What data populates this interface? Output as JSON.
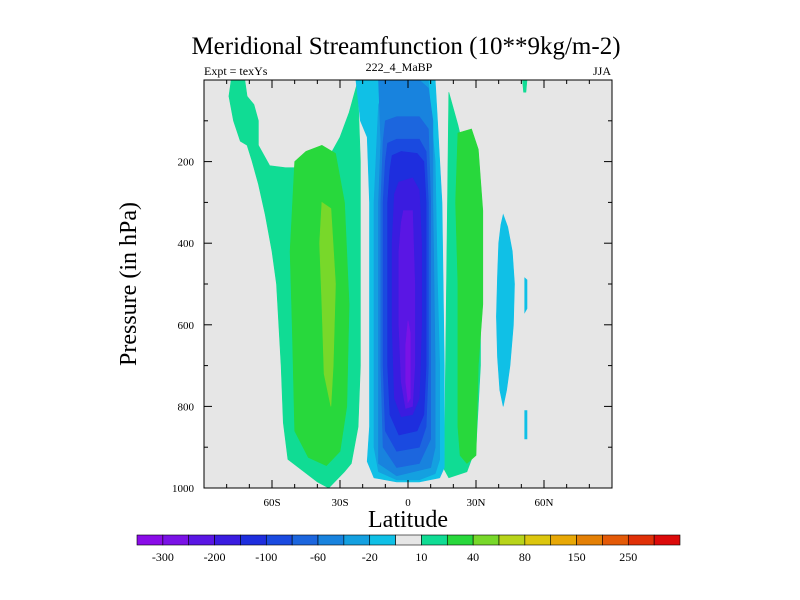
{
  "chart_data": {
    "type": "heatmap",
    "title": "Meridional Streamfunction (10**9kg/m-2)",
    "left_string": "Expt = texYs",
    "center_string": "222_4_MaBP",
    "right_string": "JJA",
    "xlabel": "Latitude",
    "ylabel": "Pressure (in hPa)",
    "xlim": [
      -90,
      90
    ],
    "ylim": [
      1000,
      0
    ],
    "x_ticks": [
      {
        "value": -60,
        "label": "60S"
      },
      {
        "value": -30,
        "label": "30S"
      },
      {
        "value": 0,
        "label": "0"
      },
      {
        "value": 30,
        "label": "30N"
      },
      {
        "value": 60,
        "label": "60N"
      }
    ],
    "y_ticks": [
      {
        "value": 200,
        "label": "200"
      },
      {
        "value": 400,
        "label": "400"
      },
      {
        "value": 600,
        "label": "600"
      },
      {
        "value": 800,
        "label": "800"
      },
      {
        "value": 1000,
        "label": "1000"
      }
    ],
    "background_color": "#e6e6e6",
    "colorbar": {
      "colors": [
        "#8a0ce8",
        "#7a12e6",
        "#5a16e4",
        "#3a1ce0",
        "#1e2ede",
        "#1a4ae0",
        "#1c66de",
        "#1883de",
        "#14a0e0",
        "#10c0e6",
        "#e6e6e6",
        "#10dc94",
        "#28d83c",
        "#78d82a",
        "#b8d41a",
        "#dcc60e",
        "#e8a806",
        "#e48006",
        "#e45a08",
        "#e03008",
        "#dc0a0a"
      ],
      "labels": [
        {
          "after_box": 0,
          "text": "-300"
        },
        {
          "after_box": 2,
          "text": "-200"
        },
        {
          "after_box": 4,
          "text": "-100"
        },
        {
          "after_box": 6,
          "text": "-60"
        },
        {
          "after_box": 8,
          "text": "-20"
        },
        {
          "after_box": 10,
          "text": "10"
        },
        {
          "after_box": 12,
          "text": "40"
        },
        {
          "after_box": 14,
          "text": "80"
        },
        {
          "after_box": 16,
          "text": "150"
        },
        {
          "after_box": 18,
          "text": "250"
        }
      ]
    },
    "contour_regions": [
      {
        "name": "nh-small-blue-cell",
        "level": -20,
        "color": "#10c0e6",
        "points": [
          [
            42,
            330
          ],
          [
            44,
            360
          ],
          [
            46,
            420
          ],
          [
            47,
            500
          ],
          [
            46.5,
            600
          ],
          [
            45,
            700
          ],
          [
            43.5,
            760
          ],
          [
            42,
            800
          ],
          [
            40.5,
            760
          ],
          [
            39.5,
            680
          ],
          [
            39,
            580
          ],
          [
            39.5,
            480
          ],
          [
            40,
            400
          ],
          [
            41,
            355
          ]
        ]
      },
      {
        "name": "nh-right-blue-fragment-1",
        "level": -20,
        "color": "#10c0e6",
        "points": [
          [
            51.5,
            485
          ],
          [
            52.5,
            490
          ],
          [
            52.5,
            560
          ],
          [
            51.5,
            570
          ]
        ]
      },
      {
        "name": "nh-right-blue-fragment-2",
        "level": -20,
        "color": "#10c0e6",
        "points": [
          [
            51.5,
            810
          ],
          [
            52.5,
            810
          ],
          [
            52.5,
            880
          ],
          [
            51.5,
            880
          ]
        ]
      },
      {
        "name": "nh-top-teal-sliver",
        "level": 10,
        "color": "#10dc94",
        "points": [
          [
            50.5,
            0
          ],
          [
            52.5,
            0
          ],
          [
            52,
            30
          ],
          [
            51,
            30
          ]
        ]
      },
      {
        "name": "sh-teal-cell",
        "level": 10,
        "color": "#10dc94",
        "points": [
          [
            -78,
            0
          ],
          [
            -72,
            0
          ],
          [
            -71,
            40
          ],
          [
            -68,
            60
          ],
          [
            -66,
            100
          ],
          [
            -66,
            160
          ],
          [
            -64,
            180
          ],
          [
            -61,
            210
          ],
          [
            -54,
            215
          ],
          [
            -44,
            215
          ],
          [
            -36,
            200
          ],
          [
            -30,
            140
          ],
          [
            -26,
            80
          ],
          [
            -22,
            0
          ],
          [
            -22,
            40
          ],
          [
            -21,
            200
          ],
          [
            -21,
            450
          ],
          [
            -21,
            700
          ],
          [
            -22,
            850
          ],
          [
            -25,
            940
          ],
          [
            -28,
            960
          ],
          [
            -35,
            1000
          ],
          [
            -40,
            985
          ],
          [
            -53,
            930
          ],
          [
            -55,
            840
          ],
          [
            -56,
            700
          ],
          [
            -58,
            500
          ],
          [
            -60,
            420
          ],
          [
            -63,
            330
          ],
          [
            -66,
            255
          ],
          [
            -69,
            195
          ],
          [
            -71,
            160
          ],
          [
            -74,
            150
          ],
          [
            -77,
            100
          ],
          [
            -79,
            40
          ]
        ]
      },
      {
        "name": "sh-green-cell",
        "level": 40,
        "color": "#28d83c",
        "points": [
          [
            -50,
            200
          ],
          [
            -45,
            175
          ],
          [
            -38,
            160
          ],
          [
            -32,
            180
          ],
          [
            -28,
            300
          ],
          [
            -26,
            550
          ],
          [
            -27,
            800
          ],
          [
            -30,
            910
          ],
          [
            -36,
            945
          ],
          [
            -44,
            925
          ],
          [
            -50,
            860
          ],
          [
            -51,
            620
          ],
          [
            -52,
            420
          ]
        ]
      },
      {
        "name": "sh-core-cell",
        "level": 80,
        "color": "#78d82a",
        "points": [
          [
            -38,
            300
          ],
          [
            -34,
            315
          ],
          [
            -32,
            500
          ],
          [
            -33,
            700
          ],
          [
            -34,
            800
          ],
          [
            -37,
            720
          ],
          [
            -38,
            550
          ],
          [
            -39,
            400
          ]
        ]
      },
      {
        "name": "nh-teal-cell",
        "level": 10,
        "color": "#10dc94",
        "points": [
          [
            18,
            30
          ],
          [
            22,
            110
          ],
          [
            30,
            300
          ],
          [
            32,
            500
          ],
          [
            32,
            700
          ],
          [
            30,
            900
          ],
          [
            26,
            960
          ],
          [
            18,
            975
          ],
          [
            16,
            955
          ]
        ]
      },
      {
        "name": "nh-green-cell",
        "level": 40,
        "color": "#28d83c",
        "points": [
          [
            22,
            130
          ],
          [
            28,
            120
          ],
          [
            31,
            170
          ],
          [
            33,
            320
          ],
          [
            33,
            550
          ],
          [
            31,
            700
          ],
          [
            30,
            920
          ],
          [
            26,
            940
          ],
          [
            23,
            920
          ],
          [
            22,
            850
          ],
          [
            22,
            500
          ],
          [
            21,
            300
          ]
        ]
      },
      {
        "name": "sh-hadley-level-20",
        "level": -20,
        "color": "#10c0e6",
        "points": [
          [
            -25,
            0
          ],
          [
            -23,
            0
          ],
          [
            -21,
            100
          ],
          [
            -18,
            140
          ],
          [
            -17,
            300
          ],
          [
            -17,
            600
          ],
          [
            -17,
            850
          ],
          [
            -18,
            935
          ],
          [
            -15,
            975
          ],
          [
            -5,
            985
          ],
          [
            5,
            985
          ],
          [
            14,
            975
          ],
          [
            16,
            950
          ],
          [
            16,
            700
          ],
          [
            15,
            300
          ],
          [
            13,
            100
          ],
          [
            12,
            0
          ]
        ]
      },
      {
        "name": "sh-hadley-level-40",
        "level": -40,
        "color": "#14a0e0",
        "points": [
          [
            -18,
            0
          ],
          [
            -13,
            0
          ],
          [
            -12,
            15
          ],
          [
            -11,
            40
          ],
          [
            -13,
            60
          ],
          [
            -15,
            300
          ],
          [
            -15,
            700
          ],
          [
            -15,
            900
          ],
          [
            -13,
            960
          ],
          [
            -5,
            980
          ],
          [
            5,
            980
          ],
          [
            12,
            965
          ],
          [
            14,
            930
          ],
          [
            14,
            700
          ],
          [
            13,
            500
          ],
          [
            12,
            200
          ],
          [
            10,
            80
          ],
          [
            9,
            0
          ]
        ]
      },
      {
        "name": "sh-hadley-level-60",
        "level": -60,
        "color": "#1883de",
        "points": [
          [
            -13,
            0
          ],
          [
            -5,
            0
          ],
          [
            5,
            0
          ],
          [
            9,
            20
          ],
          [
            11,
            100
          ],
          [
            11,
            300
          ],
          [
            12,
            700
          ],
          [
            12,
            900
          ],
          [
            10,
            950
          ],
          [
            -5,
            970
          ],
          [
            -13,
            940
          ],
          [
            -13,
            600
          ],
          [
            -13,
            300
          ],
          [
            -12,
            150
          ]
        ]
      },
      {
        "name": "sh-hadley-level-80",
        "level": -80,
        "color": "#1c66de",
        "points": [
          [
            -10,
            100
          ],
          [
            -5,
            90
          ],
          [
            5,
            90
          ],
          [
            9,
            120
          ],
          [
            10,
            300
          ],
          [
            10,
            700
          ],
          [
            10,
            880
          ],
          [
            5,
            940
          ],
          [
            -5,
            950
          ],
          [
            -11,
            900
          ],
          [
            -12,
            700
          ],
          [
            -12,
            300
          ],
          [
            -11,
            150
          ]
        ]
      },
      {
        "name": "sh-hadley-level-100",
        "level": -100,
        "color": "#1a4ae0",
        "points": [
          [
            -9,
            155
          ],
          [
            -5,
            145
          ],
          [
            5,
            145
          ],
          [
            8,
            175
          ],
          [
            9,
            300
          ],
          [
            9,
            700
          ],
          [
            8,
            850
          ],
          [
            5,
            900
          ],
          [
            -5,
            910
          ],
          [
            -10,
            860
          ],
          [
            -11,
            700
          ],
          [
            -11,
            300
          ],
          [
            -10,
            200
          ]
        ]
      },
      {
        "name": "sh-hadley-level-150",
        "level": -150,
        "color": "#1e2ede",
        "points": [
          [
            -7,
            185
          ],
          [
            -3,
            175
          ],
          [
            4,
            180
          ],
          [
            7,
            200
          ],
          [
            8,
            300
          ],
          [
            8,
            700
          ],
          [
            7,
            820
          ],
          [
            4,
            860
          ],
          [
            -4,
            870
          ],
          [
            -8,
            820
          ],
          [
            -9,
            700
          ],
          [
            -9,
            300
          ],
          [
            -8,
            220
          ]
        ]
      },
      {
        "name": "sh-hadley-level-200",
        "level": -200,
        "color": "#3a1ce0",
        "points": [
          [
            -4,
            250
          ],
          [
            2,
            240
          ],
          [
            5,
            270
          ],
          [
            6,
            400
          ],
          [
            6,
            600
          ],
          [
            5,
            780
          ],
          [
            2,
            820
          ],
          [
            -3,
            825
          ],
          [
            -6,
            780
          ],
          [
            -7,
            600
          ],
          [
            -7,
            400
          ],
          [
            -6,
            280
          ]
        ]
      },
      {
        "name": "sh-hadley-level-250",
        "level": -250,
        "color": "#5a16e4",
        "points": [
          [
            -2,
            320
          ],
          [
            2,
            320
          ],
          [
            3,
            500
          ],
          [
            3,
            700
          ],
          [
            2,
            800
          ],
          [
            -1,
            805
          ],
          [
            -3,
            740
          ],
          [
            -4,
            600
          ],
          [
            -4,
            420
          ],
          [
            -3,
            350
          ]
        ]
      },
      {
        "name": "sh-hadley-level-300",
        "level": -300,
        "color": "#7a12e6",
        "points": [
          [
            0,
            590
          ],
          [
            1,
            620
          ],
          [
            1,
            700
          ],
          [
            1,
            780
          ],
          [
            0,
            790
          ],
          [
            -1,
            740
          ],
          [
            -1,
            650
          ]
        ]
      }
    ]
  }
}
